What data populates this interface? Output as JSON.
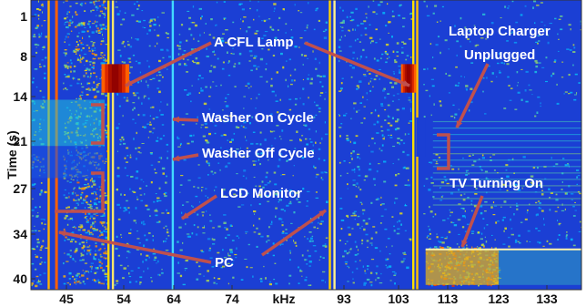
{
  "chart_data": {
    "type": "heatmap",
    "xlabel": "kHz",
    "ylabel": "Time (s)",
    "x_ticks": [
      45,
      54,
      64,
      74,
      93,
      103,
      113,
      123,
      133
    ],
    "y_ticks": [
      1,
      8,
      14,
      21,
      27,
      34,
      40
    ],
    "xlim": [
      40,
      136
    ],
    "ylim": [
      1,
      41
    ],
    "colormap": [
      "#00008f",
      "#1e46e6",
      "#00c8ff",
      "#ffe600",
      "#ff3c00",
      "#8f0000"
    ],
    "background_color": "#1b3fd4",
    "continuous_lines": [
      {
        "freq": 42.5,
        "color": "#ffb000"
      },
      {
        "freq": 43.6,
        "color": "#ff6000"
      },
      {
        "freq": 51.6,
        "color": "#ffd600"
      },
      {
        "freq": 52.3,
        "color": "#ffe76a"
      },
      {
        "freq": 63.8,
        "color": "#41d8ff"
      },
      {
        "freq": 90.6,
        "color": "#ffd300"
      },
      {
        "freq": 91.4,
        "color": "#fff08a"
      },
      {
        "freq": 106.0,
        "color": "#ffe000"
      },
      {
        "freq": 106.8,
        "color": "#ffc100"
      }
    ],
    "noisy_regions": [
      {
        "x0": 44.5,
        "x1": 51.3,
        "t0": 1,
        "t1": 41,
        "density": 0.32
      },
      {
        "x0": 40,
        "x1": 42,
        "t0": 1,
        "t1": 41,
        "density": 0.18
      },
      {
        "x0": 52.5,
        "x1": 63,
        "t0": 1,
        "t1": 41,
        "density": 0.1
      },
      {
        "x0": 64.5,
        "x1": 90,
        "t0": 1,
        "t1": 41,
        "density": 0.08
      },
      {
        "x0": 92,
        "x1": 105.5,
        "t0": 1,
        "t1": 41,
        "density": 0.1
      },
      {
        "x0": 108,
        "x1": 136,
        "t0": 1,
        "t1": 17.5,
        "density": 0.05
      },
      {
        "x0": 108,
        "x1": 136,
        "t0": 22.5,
        "t1": 35.5,
        "density": 0.09
      },
      {
        "x0": 108.5,
        "x1": 123,
        "t0": 35.5,
        "t1": 41,
        "density": 0.55
      }
    ],
    "events": [
      {
        "label": "A CFL Lamp",
        "freq_range": [
          50.5,
          55
        ],
        "time_range": [
          10,
          14
        ],
        "intensity": "high"
      },
      {
        "label": "A CFL Lamp",
        "freq_range": [
          103.5,
          106.5
        ],
        "time_range": [
          10,
          14
        ],
        "intensity": "high"
      },
      {
        "label": "Washer On Cycle",
        "freq_range": [
          40,
          51
        ],
        "time_range": [
          15,
          21.5
        ],
        "intensity": "medium"
      },
      {
        "label": "Washer Off Cycle",
        "freq_range": [
          40,
          51
        ],
        "time_range": [
          21.5,
          26
        ],
        "intensity": "low"
      },
      {
        "label": "LCD Monitor",
        "freq_range": [
          63.3,
          64.3
        ],
        "time_range": [
          1,
          41
        ],
        "intensity": "medium"
      },
      {
        "label": "PC",
        "freq_range": [
          42,
          44
        ],
        "time_range": [
          1,
          41
        ],
        "intensity": "high"
      },
      {
        "label": "Laptop Charger Unplugged",
        "freq_range": [
          106.6,
          108.5
        ],
        "time_range": [
          17.5,
          23
        ],
        "intensity": "off"
      },
      {
        "label": "TV Turning On",
        "freq_range": [
          108.5,
          123
        ],
        "time_range": [
          36,
          41
        ],
        "intensity": "high"
      }
    ],
    "annotations": [
      {
        "text": "A CFL Lamp"
      },
      {
        "text": "Laptop Charger"
      },
      {
        "text": "Unplugged"
      },
      {
        "text": "Washer On Cycle"
      },
      {
        "text": "Washer Off Cycle"
      },
      {
        "text": "LCD Monitor"
      },
      {
        "text": "TV Turning On"
      },
      {
        "text": "PC"
      }
    ],
    "annotation_color": "#ffffff",
    "arrow_color": "#c0504d",
    "grid": false,
    "legend": "none"
  }
}
